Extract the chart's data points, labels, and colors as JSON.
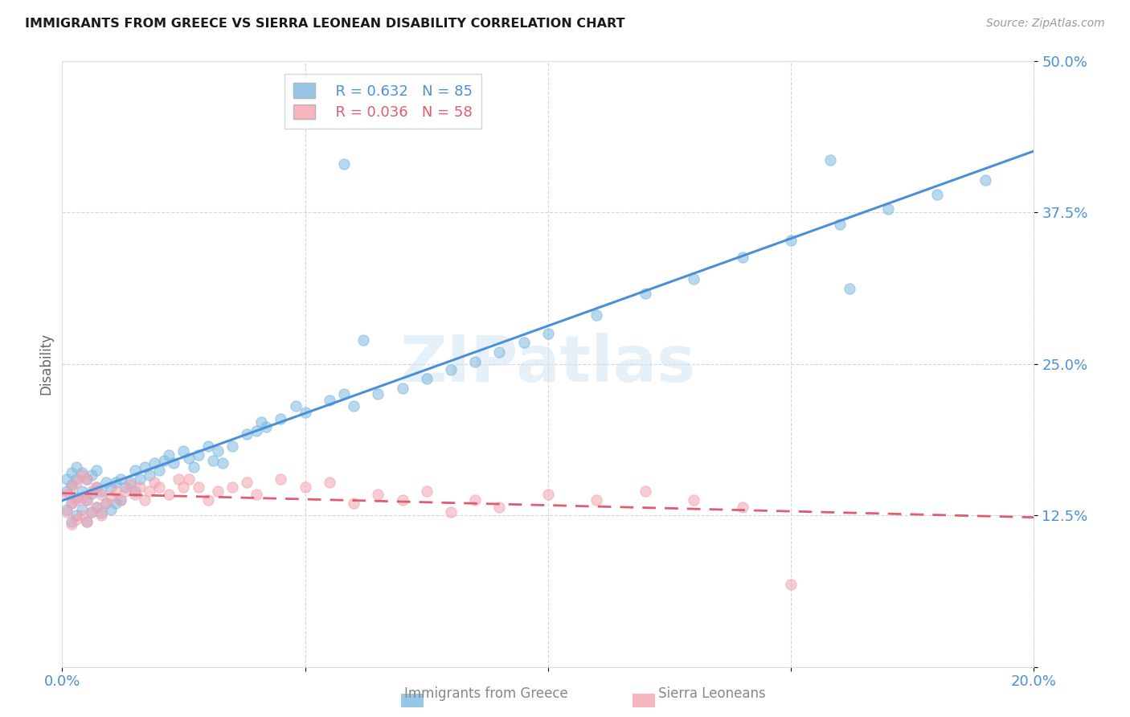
{
  "title": "IMMIGRANTS FROM GREECE VS SIERRA LEONEAN DISABILITY CORRELATION CHART",
  "source": "Source: ZipAtlas.com",
  "ylabel": "Disability",
  "xlim": [
    0.0,
    0.2
  ],
  "ylim": [
    0.0,
    0.5
  ],
  "xticks": [
    0.0,
    0.05,
    0.1,
    0.15,
    0.2
  ],
  "xticklabels": [
    "0.0%",
    "",
    "",
    "",
    "20.0%"
  ],
  "yticks": [
    0.0,
    0.125,
    0.25,
    0.375,
    0.5
  ],
  "yticklabels": [
    "",
    "12.5%",
    "25.0%",
    "37.5%",
    "50.0%"
  ],
  "watermark": "ZIPatlas",
  "legend_R1": "R = 0.632",
  "legend_N1": "N = 85",
  "legend_R2": "R = 0.036",
  "legend_N2": "N = 58",
  "series1_color": "#7fb9e0",
  "series2_color": "#f4a3b0",
  "trend1_color": "#4a90d9",
  "trend2_color": "#e05c6e",
  "background_color": "#ffffff",
  "grid_color": "#cccccc",
  "axis_tick_color": "#4a90d9",
  "title_color": "#1a1a1a",
  "series1_x": [
    0.001,
    0.001,
    0.001,
    0.002,
    0.002,
    0.002,
    0.002,
    0.003,
    0.003,
    0.003,
    0.003,
    0.004,
    0.004,
    0.004,
    0.005,
    0.005,
    0.005,
    0.006,
    0.006,
    0.006,
    0.007,
    0.007,
    0.007,
    0.008,
    0.008,
    0.009,
    0.009,
    0.01,
    0.01,
    0.011,
    0.011,
    0.012,
    0.012,
    0.013,
    0.014,
    0.015,
    0.015,
    0.016,
    0.017,
    0.018,
    0.019,
    0.02,
    0.021,
    0.022,
    0.023,
    0.025,
    0.026,
    0.027,
    0.028,
    0.03,
    0.031,
    0.032,
    0.033,
    0.035,
    0.038,
    0.04,
    0.041,
    0.042,
    0.045,
    0.048,
    0.05,
    0.055,
    0.058,
    0.06,
    0.065,
    0.07,
    0.075,
    0.08,
    0.085,
    0.09,
    0.095,
    0.1,
    0.11,
    0.12,
    0.13,
    0.14,
    0.15,
    0.16,
    0.17,
    0.18,
    0.19,
    0.058,
    0.062,
    0.158,
    0.162
  ],
  "series1_y": [
    0.13,
    0.145,
    0.155,
    0.12,
    0.135,
    0.15,
    0.16,
    0.125,
    0.14,
    0.155,
    0.165,
    0.13,
    0.145,
    0.16,
    0.12,
    0.138,
    0.155,
    0.128,
    0.143,
    0.158,
    0.132,
    0.148,
    0.162,
    0.127,
    0.145,
    0.135,
    0.152,
    0.13,
    0.148,
    0.135,
    0.152,
    0.138,
    0.155,
    0.148,
    0.152,
    0.145,
    0.162,
    0.155,
    0.165,
    0.158,
    0.168,
    0.162,
    0.17,
    0.175,
    0.168,
    0.178,
    0.172,
    0.165,
    0.175,
    0.182,
    0.17,
    0.178,
    0.168,
    0.182,
    0.192,
    0.195,
    0.202,
    0.198,
    0.205,
    0.215,
    0.21,
    0.22,
    0.225,
    0.215,
    0.225,
    0.23,
    0.238,
    0.245,
    0.252,
    0.26,
    0.268,
    0.275,
    0.29,
    0.308,
    0.32,
    0.338,
    0.352,
    0.365,
    0.378,
    0.39,
    0.402,
    0.415,
    0.27,
    0.418,
    0.312
  ],
  "series2_x": [
    0.001,
    0.001,
    0.002,
    0.002,
    0.002,
    0.003,
    0.003,
    0.003,
    0.004,
    0.004,
    0.004,
    0.005,
    0.005,
    0.005,
    0.006,
    0.006,
    0.007,
    0.007,
    0.008,
    0.008,
    0.009,
    0.01,
    0.011,
    0.012,
    0.013,
    0.014,
    0.015,
    0.016,
    0.017,
    0.018,
    0.019,
    0.02,
    0.022,
    0.024,
    0.025,
    0.026,
    0.028,
    0.03,
    0.032,
    0.035,
    0.038,
    0.04,
    0.045,
    0.05,
    0.055,
    0.06,
    0.065,
    0.07,
    0.075,
    0.08,
    0.085,
    0.09,
    0.1,
    0.11,
    0.12,
    0.13,
    0.14,
    0.15
  ],
  "series2_y": [
    0.128,
    0.142,
    0.118,
    0.135,
    0.148,
    0.122,
    0.138,
    0.152,
    0.125,
    0.14,
    0.158,
    0.12,
    0.138,
    0.155,
    0.128,
    0.145,
    0.132,
    0.148,
    0.125,
    0.142,
    0.135,
    0.14,
    0.145,
    0.138,
    0.145,
    0.15,
    0.142,
    0.148,
    0.138,
    0.145,
    0.152,
    0.148,
    0.142,
    0.155,
    0.148,
    0.155,
    0.148,
    0.138,
    0.145,
    0.148,
    0.152,
    0.142,
    0.155,
    0.148,
    0.152,
    0.135,
    0.142,
    0.138,
    0.145,
    0.128,
    0.138,
    0.132,
    0.142,
    0.138,
    0.145,
    0.138,
    0.132,
    0.068
  ]
}
